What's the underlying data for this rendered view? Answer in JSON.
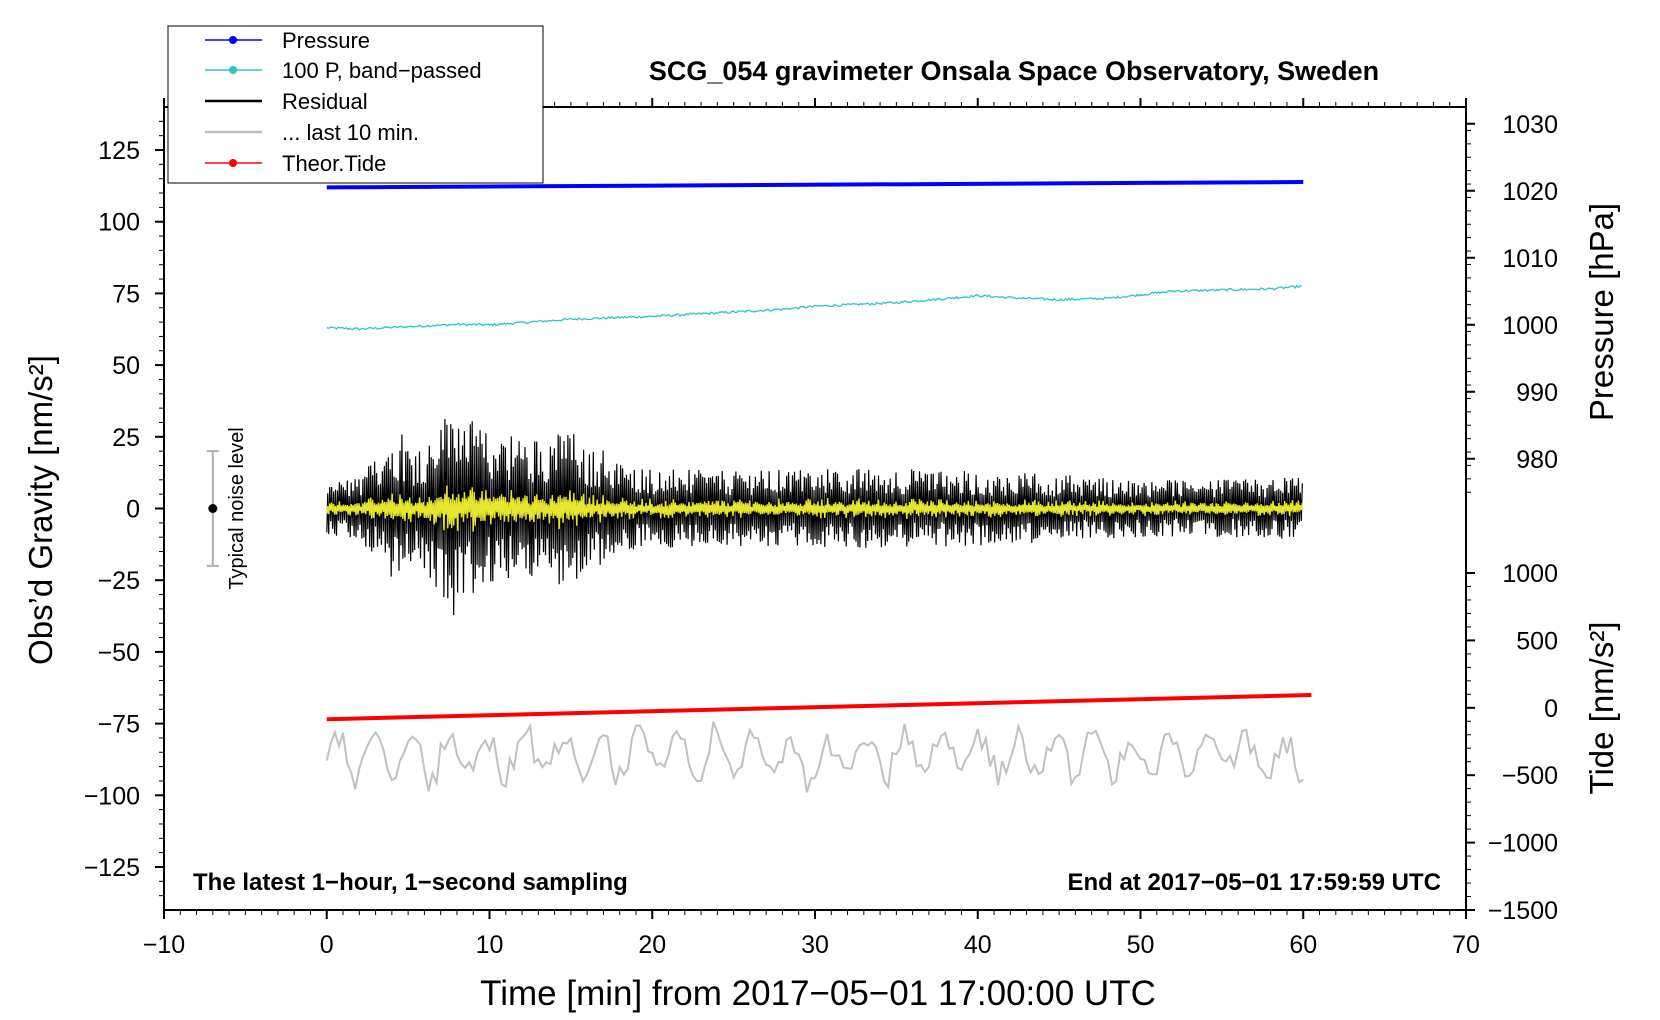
{
  "chart_data": {
    "type": "line",
    "title": "SCG_054 gravimeter Onsala Space Observatory, Sweden",
    "xlabel": "Time [min] from 2017−05−01 17:00:00 UTC",
    "ylabel_left": "Obs’d Gravity [nm/s²]",
    "ylabel_right_pressure": "Pressure [hPa]",
    "ylabel_right_tide": "Tide [nm/s²]",
    "xlim": [
      -10,
      70
    ],
    "ylim": [
      -140,
      140
    ],
    "x_ticks": [
      -10,
      0,
      10,
      20,
      30,
      40,
      50,
      60,
      70
    ],
    "x_tick_labels": [
      "−10",
      "0",
      "10",
      "20",
      "30",
      "40",
      "50",
      "60",
      "70"
    ],
    "y_ticks": [
      125,
      100,
      75,
      50,
      25,
      0,
      -25,
      -50,
      -75,
      -100,
      -125
    ],
    "y_tick_labels": [
      "125",
      "100",
      "75",
      "50",
      "25",
      "0",
      "−25",
      "−50",
      "−75",
      "−100",
      "−125"
    ],
    "pressure_axis": {
      "ticks": [
        1030,
        1020,
        1010,
        1000,
        990,
        980
      ],
      "tick_labels": [
        "1030",
        "1020",
        "1010",
        "1000",
        "990",
        "980"
      ],
      "range": [
        972.5,
        1032.5
      ]
    },
    "tide_axis": {
      "ticks": [
        1000,
        500,
        0,
        -500,
        -1000,
        -1500
      ],
      "tick_labels": [
        "1000",
        "500",
        "0",
        "−500",
        "−1000",
        "−1500"
      ],
      "range": [
        -1500,
        1000
      ]
    },
    "legend": {
      "position": "top-left",
      "entries": [
        {
          "label": "Pressure",
          "color": "#0000ff",
          "marker": true
        },
        {
          "label": "100 P, band−passed",
          "color": "#2ec4c4",
          "marker": true
        },
        {
          "label": "Residual",
          "color": "#000000",
          "marker": false
        },
        {
          "label": "... last 10 min.",
          "color": "#c0c0c0",
          "marker": false
        },
        {
          "label": "Theor.Tide",
          "color": "#ff0000",
          "marker": true
        }
      ]
    },
    "series": [
      {
        "name": "Pressure",
        "axis": "pressure",
        "color": "#0000ff",
        "x": [
          0,
          60
        ],
        "values": [
          1020.5,
          1021.3
        ]
      },
      {
        "name": "100 P, band-passed",
        "axis": "gravity",
        "color": "#2ec4c4",
        "x": [
          0,
          2,
          5,
          8,
          10,
          12,
          15,
          18,
          20,
          22,
          25,
          28,
          30,
          32,
          35,
          38,
          40,
          42,
          45,
          48,
          50,
          52,
          55,
          58,
          60
        ],
        "values": [
          63,
          62.6,
          63.4,
          64.2,
          64,
          64.8,
          66,
          66.6,
          67,
          67.6,
          68.5,
          69.5,
          70.5,
          71,
          71.8,
          73.2,
          74.2,
          73.5,
          72.8,
          73.3,
          74.5,
          75.8,
          76.2,
          76.6,
          77.5
        ]
      },
      {
        "name": "Residual",
        "axis": "gravity",
        "color": "#000000",
        "x_range": [
          0,
          60
        ],
        "amplitude_range": [
          -39,
          39
        ]
      },
      {
        "name": "... last 10 min.",
        "axis": "gravity",
        "color": "#c0c0c0",
        "x_range": [
          0,
          60
        ],
        "amplitude_range": [
          -99,
          -74
        ]
      },
      {
        "name": "Theor.Tide",
        "axis": "tide",
        "color": "#ff0000",
        "x": [
          0,
          60.5
        ],
        "values": [
          -85,
          95
        ]
      },
      {
        "name": "Residual band-passed",
        "axis": "gravity",
        "color": "#e6e62e",
        "x_range": [
          0,
          60
        ],
        "amplitude_range": [
          -8,
          8
        ]
      }
    ],
    "noise_bar": {
      "x": -7,
      "center": 0,
      "low": -20,
      "high": 20,
      "label": "Typical noise level"
    },
    "annotations": {
      "bottom_left": "The latest 1−hour, 1−second sampling",
      "bottom_right": "End at 2017−05−01 17:59:59 UTC"
    }
  }
}
